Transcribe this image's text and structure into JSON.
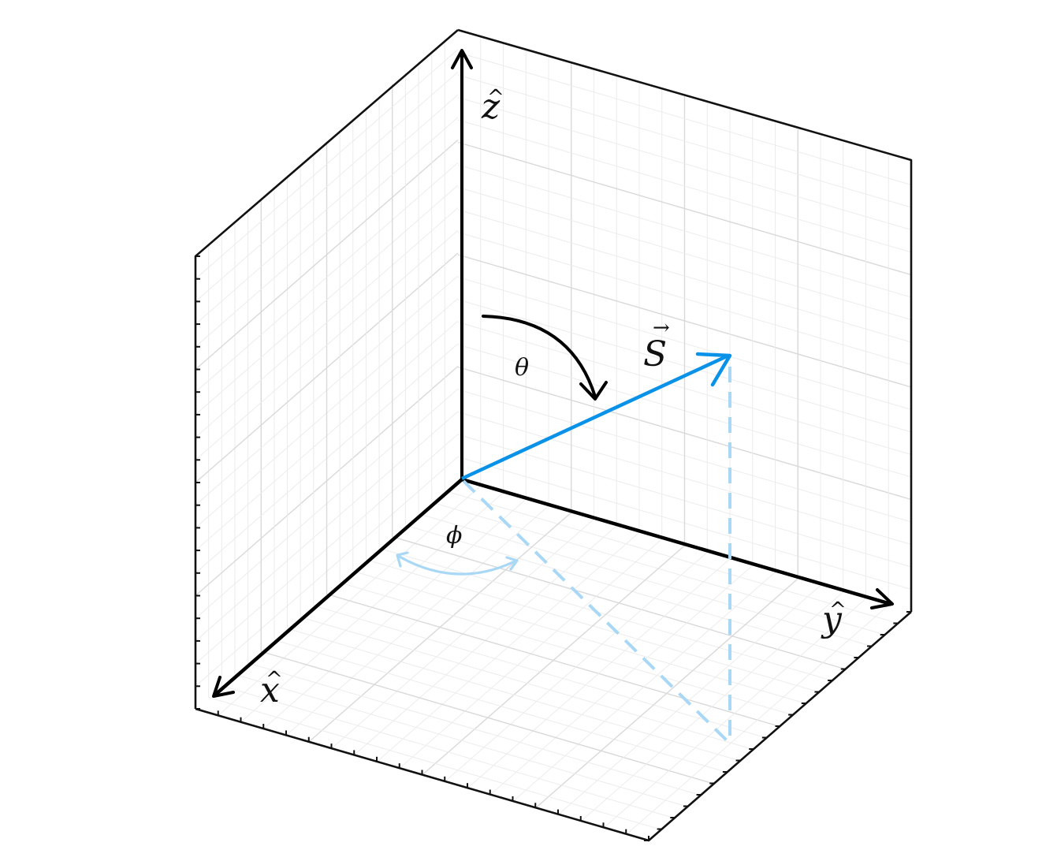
{
  "labels": {
    "z_axis": "z",
    "y_axis": "y",
    "x_axis": "x",
    "vector": "S",
    "theta": "θ",
    "phi": "ϕ",
    "hat_mark": "^",
    "vec_mark": "→"
  },
  "colors": {
    "axes": "#000000",
    "vector": "#0a91e8",
    "projection": "#a9d8f7",
    "grid_minor": "#ececec",
    "grid_major": "#d9d9d9",
    "frame": "#111111"
  }
}
